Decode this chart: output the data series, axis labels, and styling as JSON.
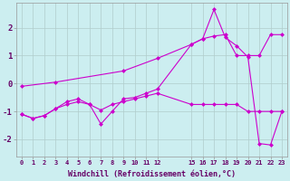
{
  "xlabel": "Windchill (Refroidissement éolien,°C)",
  "background_color": "#cceef0",
  "grid_color": "#b0cccc",
  "line_color": "#cc00cc",
  "x_ticks": [
    0,
    1,
    2,
    3,
    4,
    5,
    6,
    7,
    8,
    9,
    10,
    11,
    12,
    15,
    16,
    17,
    18,
    19,
    20,
    21,
    22,
    23
  ],
  "xlim": [
    -0.5,
    23.5
  ],
  "ylim": [
    -2.6,
    2.9
  ],
  "yticks": [
    -2,
    -1,
    0,
    1,
    2
  ],
  "line1_x": [
    0,
    1,
    2,
    3,
    4,
    5,
    6,
    7,
    8,
    9,
    10,
    11,
    12,
    15,
    16,
    17,
    18,
    19,
    20,
    21,
    22,
    23
  ],
  "line1_y": [
    -1.1,
    -1.25,
    -1.15,
    -0.9,
    -0.75,
    -0.65,
    -0.75,
    -0.95,
    -0.75,
    -0.65,
    -0.55,
    -0.45,
    -0.35,
    -0.75,
    -0.75,
    -0.75,
    -0.75,
    -0.75,
    -1.0,
    -1.0,
    -1.0,
    -1.0
  ],
  "line2_x": [
    0,
    3,
    9,
    12,
    15,
    16,
    17,
    18,
    19,
    20,
    21,
    22,
    23
  ],
  "line2_y": [
    -0.1,
    0.05,
    0.45,
    0.9,
    1.4,
    1.6,
    1.7,
    1.75,
    1.0,
    1.0,
    1.0,
    1.75,
    1.75
  ],
  "line3_x": [
    0,
    1,
    2,
    3,
    4,
    5,
    6,
    7,
    8,
    9,
    10,
    11,
    12,
    15,
    16,
    17,
    18,
    19,
    20,
    21,
    22,
    23
  ],
  "line3_y": [
    -1.1,
    -1.25,
    -1.15,
    -0.9,
    -0.65,
    -0.55,
    -0.75,
    -1.45,
    -1.0,
    -0.55,
    -0.5,
    -0.35,
    -0.2,
    1.4,
    1.6,
    2.65,
    1.65,
    1.35,
    0.95,
    -2.15,
    -2.2,
    -1.0
  ],
  "marker": "D",
  "markersize": 2.5,
  "linewidth": 0.8,
  "tick_fontsize": 5.0,
  "xlabel_fontsize": 6.0,
  "ytick_fontsize": 6.5
}
